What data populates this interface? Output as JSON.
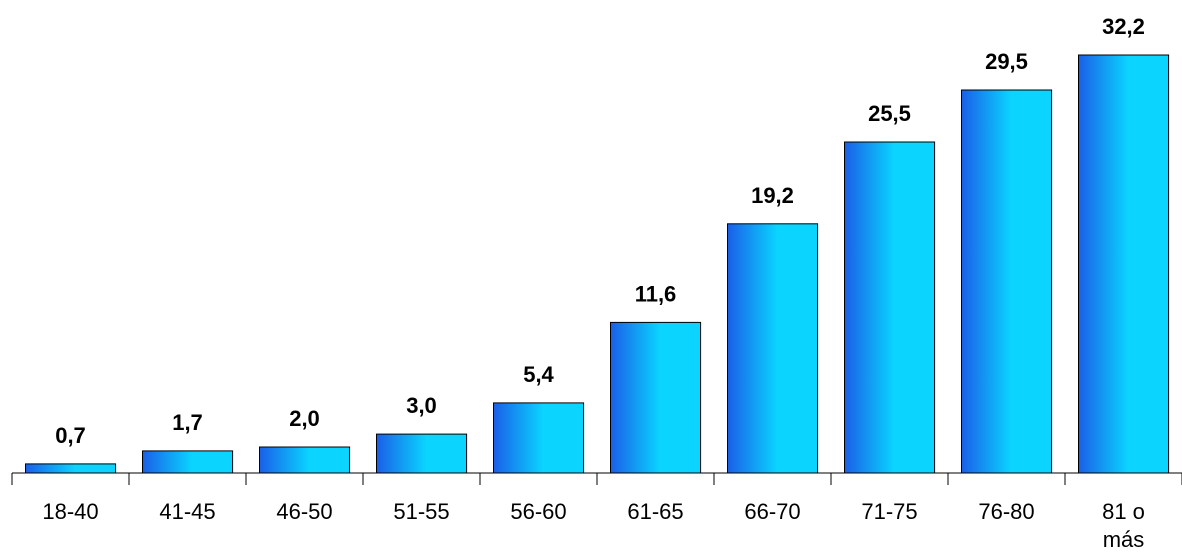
{
  "chart_data": {
    "type": "bar",
    "categories": [
      "18-40",
      "41-45",
      "46-50",
      "51-55",
      "56-60",
      "61-65",
      "66-70",
      "71-75",
      "76-80",
      "81 o más"
    ],
    "category_lines": [
      [
        "18-40"
      ],
      [
        "41-45"
      ],
      [
        "46-50"
      ],
      [
        "51-55"
      ],
      [
        "56-60"
      ],
      [
        "61-65"
      ],
      [
        "66-70"
      ],
      [
        "71-75"
      ],
      [
        "76-80"
      ],
      [
        "81 o",
        "más"
      ]
    ],
    "values": [
      0.7,
      1.7,
      2.0,
      3.0,
      5.4,
      11.6,
      19.2,
      25.5,
      29.5,
      32.2
    ],
    "value_labels": [
      "0,7",
      "1,7",
      "2,0",
      "3,0",
      "5,4",
      "11,6",
      "19,2",
      "25,5",
      "29,5",
      "32,2"
    ],
    "title": "",
    "xlabel": "",
    "ylabel": "",
    "ylim": [
      0,
      32.2
    ],
    "grid": false,
    "legend": "none",
    "colors": {
      "bar_edge": "#1a5fe8",
      "bar_center": "#0ad4ff",
      "bar_stroke": "#000000",
      "axis": "#000000"
    }
  }
}
